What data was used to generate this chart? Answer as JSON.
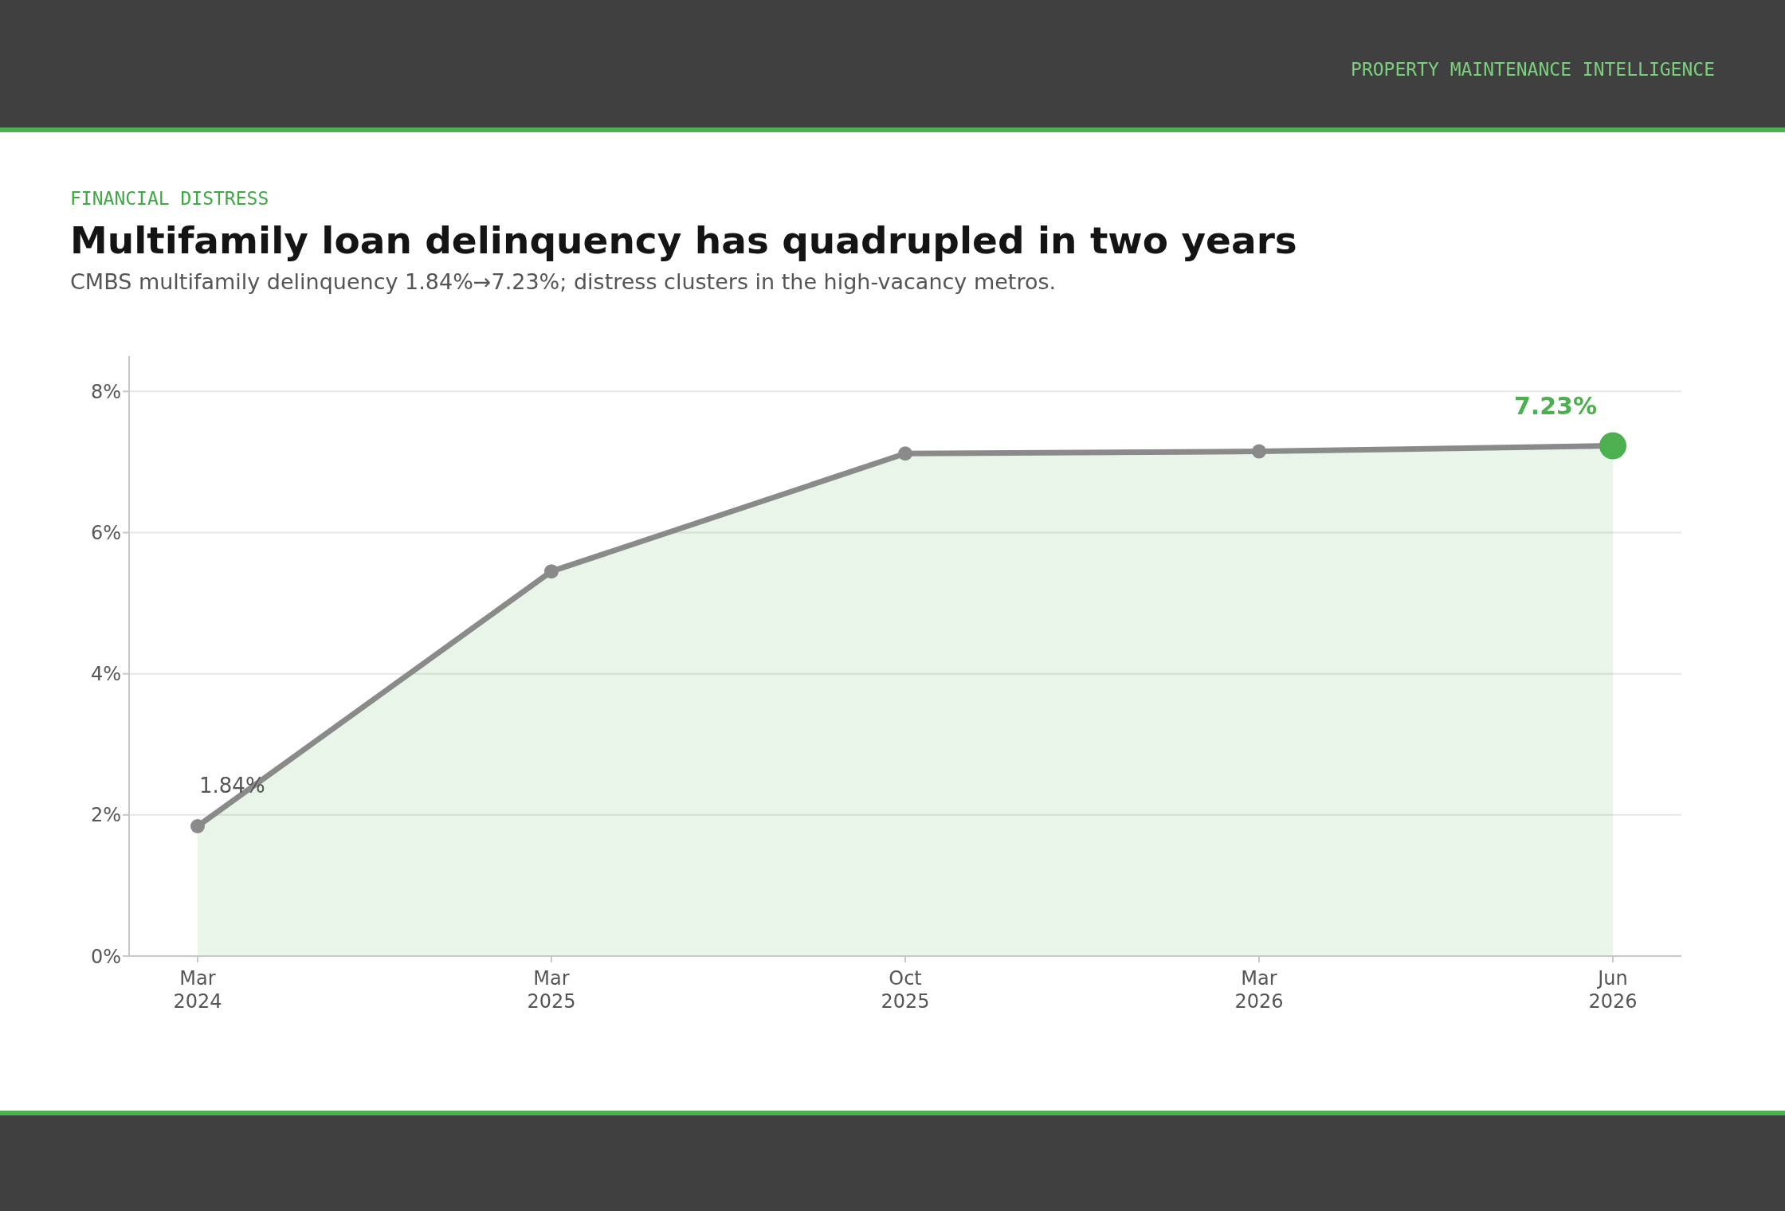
{
  "chart_data": {
    "type": "area",
    "title": "Multifamily loan delinquency has quadrupled in two years",
    "subtitle": "CMBS multifamily delinquency 1.84%→7.23%; distress clusters in the high-vacancy metros.",
    "annotations": [
      "FINANCIAL DISTRESS",
      "PROPERTY MAINTENANCE INTELLIGENCE"
    ],
    "categories": [
      "Mar 2024",
      "Mar 2025",
      "Oct 2025",
      "Mar 2026",
      "Jun 2026"
    ],
    "series": [
      {
        "color": "#8a8a8a",
        "values": [
          1.84,
          5.45,
          7.12,
          7.15,
          7.23
        ],
        "colors": [
          "#8a8a8a",
          "#8a8a8a",
          "#8a8a8a",
          "#8a8a8a",
          "#4caf50"
        ],
        "value_labels": [
          "1.84%",
          null,
          null,
          null,
          "7.23%"
        ]
      }
    ],
    "ylim": [
      0,
      8.5
    ],
    "yticks": [
      {
        "value": 0,
        "label": "0%"
      },
      {
        "value": 2,
        "label": "2%"
      },
      {
        "value": 4,
        "label": "4%"
      },
      {
        "value": 6,
        "label": "6%"
      },
      {
        "value": 8,
        "label": "8%"
      }
    ],
    "grid": "y",
    "marker": "circle",
    "line_style": "solid"
  }
}
